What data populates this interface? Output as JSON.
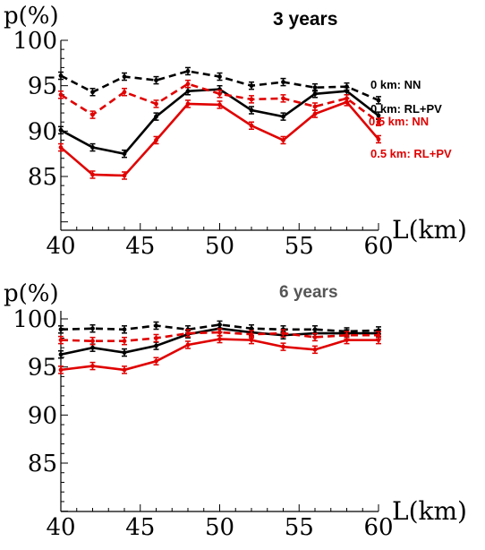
{
  "chart_data": [
    {
      "type": "line",
      "title": "3 years",
      "xlabel": "L(km)",
      "ylabel": "p(%)",
      "xlim": [
        40,
        60
      ],
      "ylim": [
        80,
        100
      ],
      "grid": false,
      "legend": "inline-right",
      "x_ticks": [
        "40",
        "45",
        "50",
        "55",
        "60"
      ],
      "y_ticks": [
        "85",
        "90",
        "95",
        "100"
      ],
      "x": [
        40,
        42,
        44,
        46,
        48,
        50,
        52,
        54,
        56,
        58,
        60
      ],
      "series": [
        {
          "name": "0 km: NN",
          "color": "#000000",
          "dashed": true,
          "values": [
            96.1,
            94.3,
            96.0,
            95.6,
            96.6,
            96.0,
            95.0,
            95.4,
            94.8,
            94.9,
            93.4
          ]
        },
        {
          "name": "0 km: RL+PV",
          "color": "#000000",
          "dashed": false,
          "values": [
            90.1,
            88.2,
            87.5,
            91.6,
            94.4,
            94.6,
            92.3,
            91.6,
            94.1,
            94.4,
            91.7
          ]
        },
        {
          "name": "0.5 km: NN",
          "color": "#e00000",
          "dashed": true,
          "values": [
            94.0,
            91.8,
            94.3,
            93.0,
            95.2,
            94.1,
            93.5,
            93.6,
            92.7,
            93.6,
            91.0
          ]
        },
        {
          "name": "0.5 km: RL+PV",
          "color": "#e00000",
          "dashed": false,
          "values": [
            88.2,
            85.2,
            85.1,
            89.0,
            93.0,
            92.9,
            90.6,
            89.0,
            91.9,
            93.2,
            89.1
          ]
        }
      ]
    },
    {
      "type": "line",
      "title": "6 years",
      "xlabel": "L(km)",
      "ylabel": "p(%)",
      "xlim": [
        40,
        60
      ],
      "ylim": [
        80,
        100
      ],
      "grid": false,
      "legend": "",
      "x_ticks": [
        "40",
        "45",
        "50",
        "55",
        "60"
      ],
      "y_ticks": [
        "85",
        "90",
        "95",
        "100"
      ],
      "x": [
        40,
        42,
        44,
        46,
        48,
        50,
        52,
        54,
        56,
        58,
        60
      ],
      "series": [
        {
          "color": "#000000",
          "dashed": true,
          "values": [
            98.9,
            99.0,
            98.9,
            99.3,
            98.9,
            99.4,
            99.0,
            98.9,
            98.9,
            98.7,
            98.8
          ]
        },
        {
          "color": "#000000",
          "dashed": false,
          "values": [
            96.3,
            97.0,
            96.5,
            97.2,
            98.4,
            99.0,
            98.6,
            98.3,
            98.5,
            98.5,
            98.5
          ]
        },
        {
          "color": "#e00000",
          "dashed": true,
          "values": [
            97.8,
            97.7,
            97.7,
            98.0,
            98.5,
            98.6,
            98.4,
            98.5,
            98.1,
            98.3,
            98.3
          ]
        },
        {
          "color": "#e00000",
          "dashed": false,
          "values": [
            94.7,
            95.1,
            94.7,
            95.6,
            97.3,
            97.9,
            97.8,
            97.1,
            96.8,
            97.8,
            97.8
          ]
        }
      ]
    }
  ]
}
